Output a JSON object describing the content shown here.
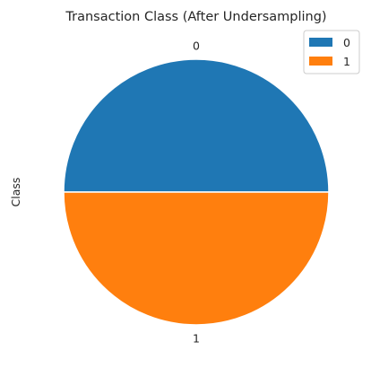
{
  "chart_data": {
    "type": "pie",
    "title": "Transaction Class (After Undersampling)",
    "ylabel": "Class",
    "labels": [
      "0",
      "1"
    ],
    "values": [
      492,
      492
    ],
    "colors": [
      "#1f77b4",
      "#ff7f0e"
    ],
    "startangle_deg": 0,
    "direction": "counterclockwise",
    "legend": {
      "placement": "top-right",
      "entries": [
        "0",
        "1"
      ]
    }
  }
}
